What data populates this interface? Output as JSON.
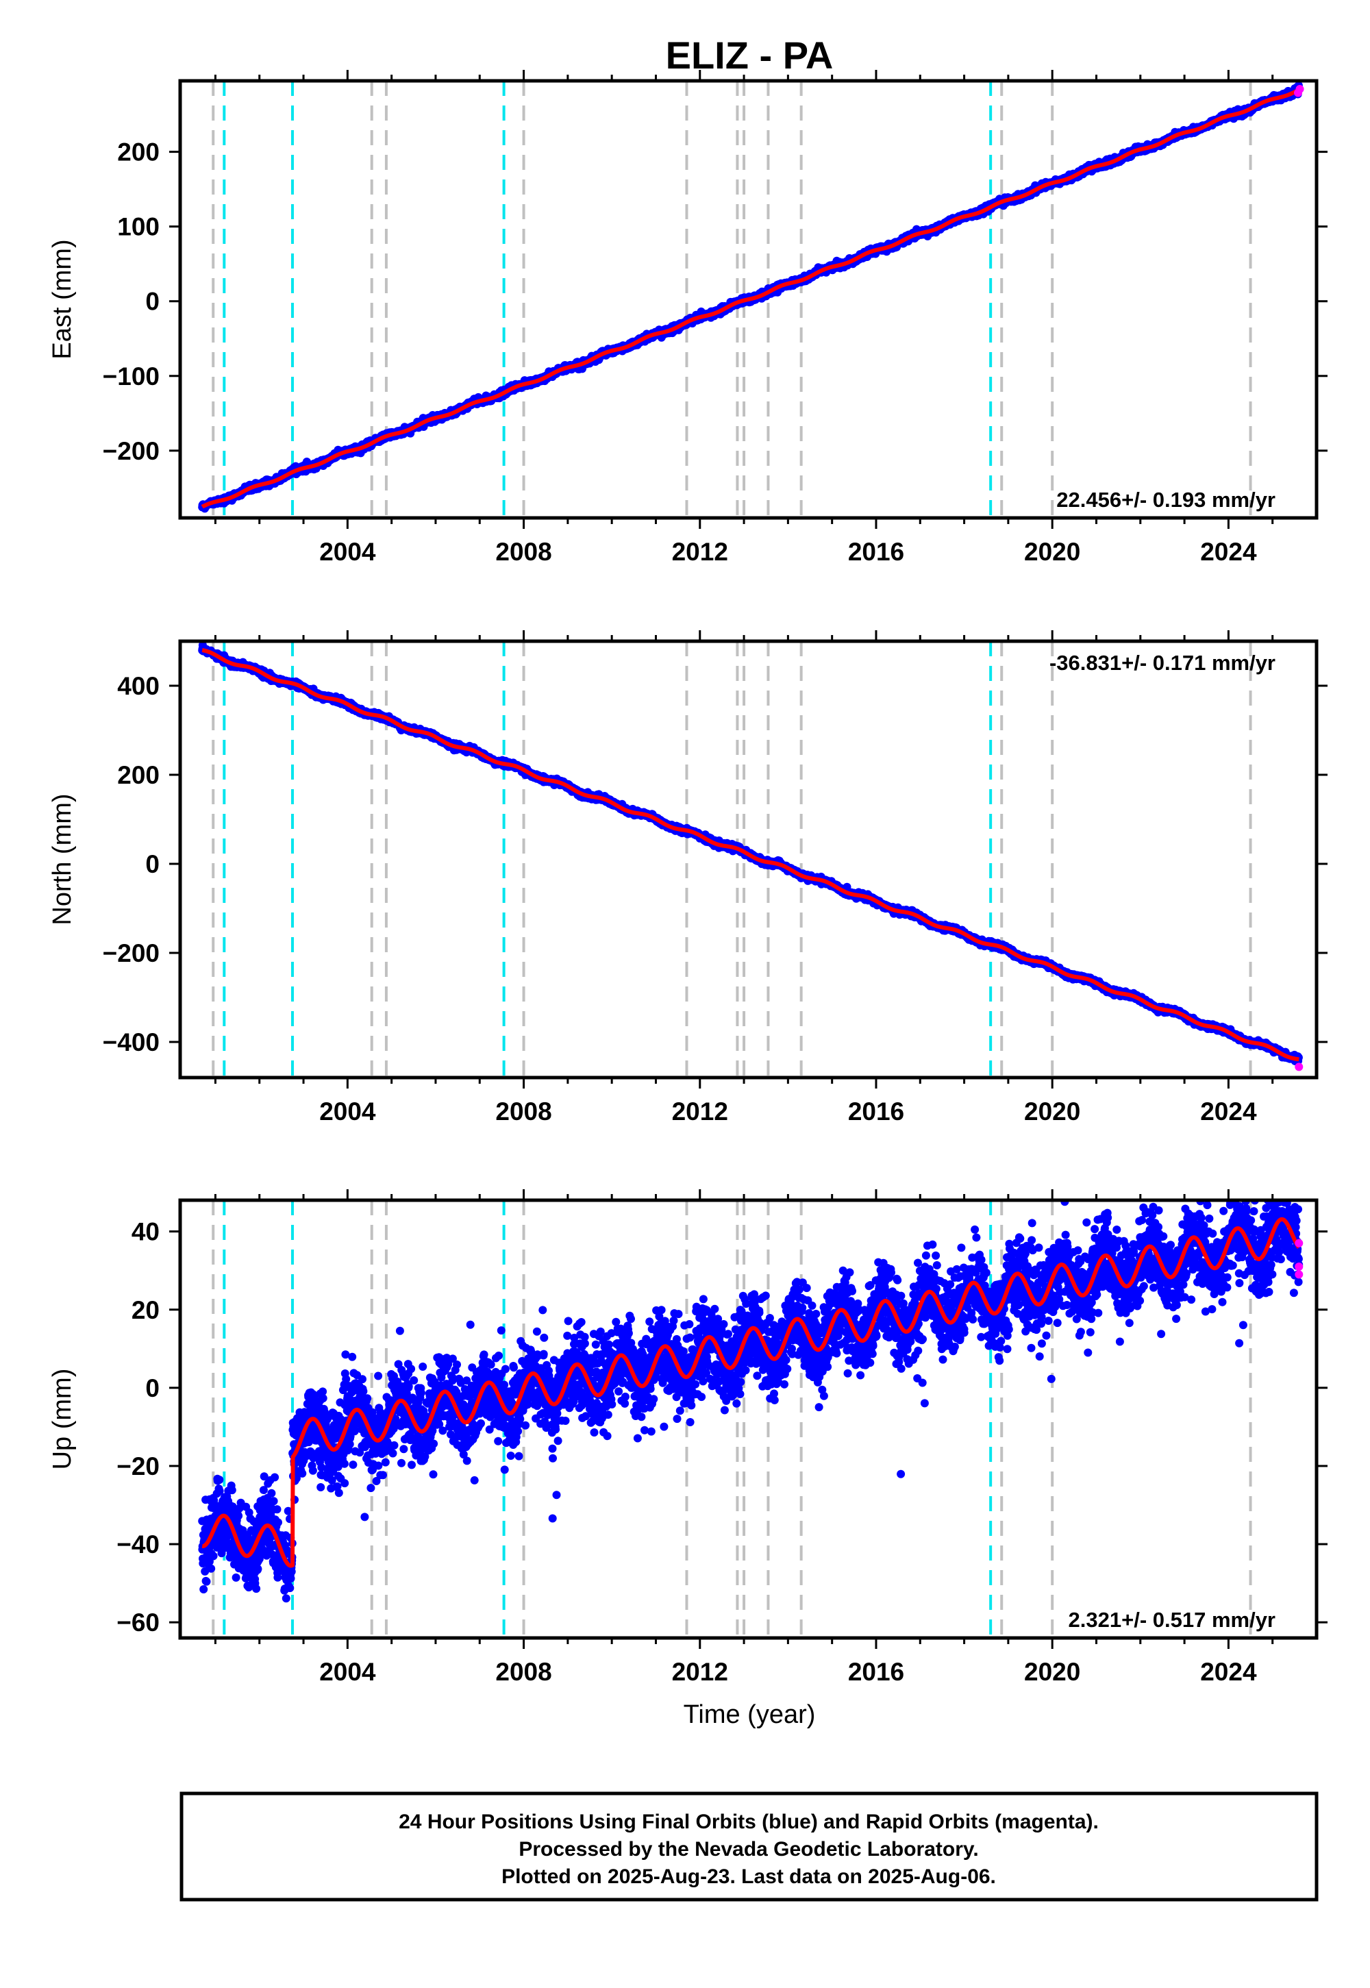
{
  "title": "ELIZ - PA",
  "xlabel": "Time (year)",
  "footer": {
    "line1": "24 Hour Positions Using Final Orbits (blue) and Rapid Orbits (magenta).",
    "line2": "Processed by the Nevada Geodetic Laboratory.",
    "line3": "Plotted on 2025-Aug-23. Last data on 2025-Aug-06."
  },
  "colors": {
    "final_orbits": "#0000ff",
    "rapid_orbits": "#ff00ff",
    "model_fit": "#ff0000",
    "equipment_change_line": "#00e5ee",
    "other_event_line": "#c0c0c0",
    "frame": "#000000"
  },
  "chart_data": [
    {
      "type": "scatter",
      "component": "East",
      "ylabel": "East (mm)",
      "xlim": [
        2000.2,
        2026.0
      ],
      "ylim": [
        -290,
        295
      ],
      "xticks": [
        2004,
        2008,
        2012,
        2016,
        2020,
        2024
      ],
      "yticks": [
        -200,
        -100,
        0,
        100,
        200
      ],
      "ytick_labels": [
        "−200",
        "−100",
        "0",
        "100",
        "200"
      ],
      "grid": false,
      "rate_label": "22.456+/- 0.193 mm/yr",
      "rate_label_position": "bottom-right",
      "fit": {
        "start": [
          2000.7,
          -276
        ],
        "slope": 22.456,
        "annual_amplitude": 1.5
      },
      "series": [
        {
          "values_description": "daily positions",
          "first": [
            2000.7,
            -278
          ],
          "last": [
            2025.6,
            282
          ],
          "scatter_sd": 2.0
        }
      ],
      "rapid_last": [
        [
          2025.58,
          279
        ],
        [
          2025.62,
          284
        ]
      ]
    },
    {
      "type": "scatter",
      "component": "North",
      "ylabel": "North (mm)",
      "xlim": [
        2000.2,
        2026.0
      ],
      "ylim": [
        -480,
        500
      ],
      "xticks": [
        2004,
        2008,
        2012,
        2016,
        2020,
        2024
      ],
      "yticks": [
        -400,
        -200,
        0,
        200,
        400
      ],
      "ytick_labels": [
        "−400",
        "−200",
        "0",
        "200",
        "400"
      ],
      "grid": false,
      "rate_label": "-36.831+/- 0.171 mm/yr",
      "rate_label_position": "top-right",
      "fit": {
        "start": [
          2000.7,
          478
        ],
        "slope": -36.831,
        "annual_amplitude": 3.5
      },
      "series": [
        {
          "values_description": "daily positions",
          "first": [
            2000.7,
            480
          ],
          "last": [
            2025.6,
            -455
          ],
          "scatter_sd": 3.0
        }
      ],
      "rapid_last": [
        [
          2025.6,
          -456
        ]
      ]
    },
    {
      "type": "scatter",
      "component": "Up",
      "ylabel": "Up (mm)",
      "xlim": [
        2000.2,
        2026.0
      ],
      "ylim": [
        -64,
        48
      ],
      "xticks": [
        2004,
        2008,
        2012,
        2016,
        2020,
        2024
      ],
      "yticks": [
        -60,
        -40,
        -20,
        0,
        20,
        40
      ],
      "ytick_labels": [
        "−60",
        "−40",
        "−20",
        "0",
        "20",
        "40"
      ],
      "grid": false,
      "rate_label": "2.321+/- 0.517 mm/yr",
      "rate_label_position": "bottom-right",
      "fit": {
        "segment1": {
          "start": 2000.7,
          "end": 2002.75,
          "offset": -36,
          "slope": -2.5,
          "annual_amplitude": 4.5
        },
        "segment2": {
          "start": 2002.75,
          "end": 2025.6,
          "offset_at_start": -13.5,
          "slope": 2.321,
          "annual_amplitude": 4.5
        }
      },
      "series": [
        {
          "values_description": "daily positions",
          "scatter_sd": 5.0
        }
      ],
      "rapid_last": [
        [
          2025.6,
          37
        ],
        [
          2025.6,
          31
        ],
        [
          2025.6,
          29
        ]
      ]
    }
  ],
  "events": {
    "equipment_changes": [
      2001.2,
      2002.75,
      2007.55,
      2018.6
    ],
    "other_events": [
      2000.95,
      2004.55,
      2004.88,
      2008.0,
      2011.7,
      2012.85,
      2013.0,
      2013.55,
      2014.3,
      2018.85,
      2020.0,
      2024.5
    ]
  }
}
